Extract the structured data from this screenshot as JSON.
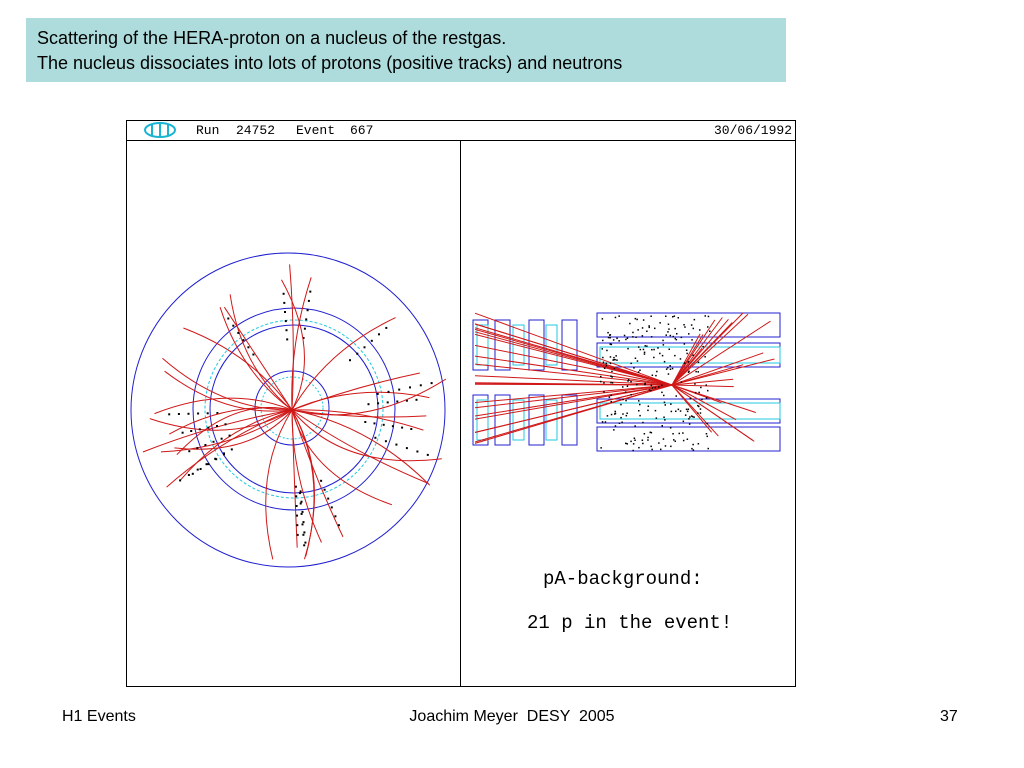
{
  "title": {
    "line1": "Scattering of the HERA-proton on a nucleus of the restgas.",
    "line2": "The nucleus dissociates into lots of protons (positive tracks) and neutrons"
  },
  "event_display": {
    "run_label": "Run",
    "run": "24752",
    "event_label": "Event",
    "event": "667",
    "date": "30/06/1992",
    "caption1": "pA-background:",
    "caption2": "21 p in the event!"
  },
  "footer": {
    "left": "H1 Events",
    "center": "Joachim Meyer  DESY  2005",
    "right": "37"
  }
}
